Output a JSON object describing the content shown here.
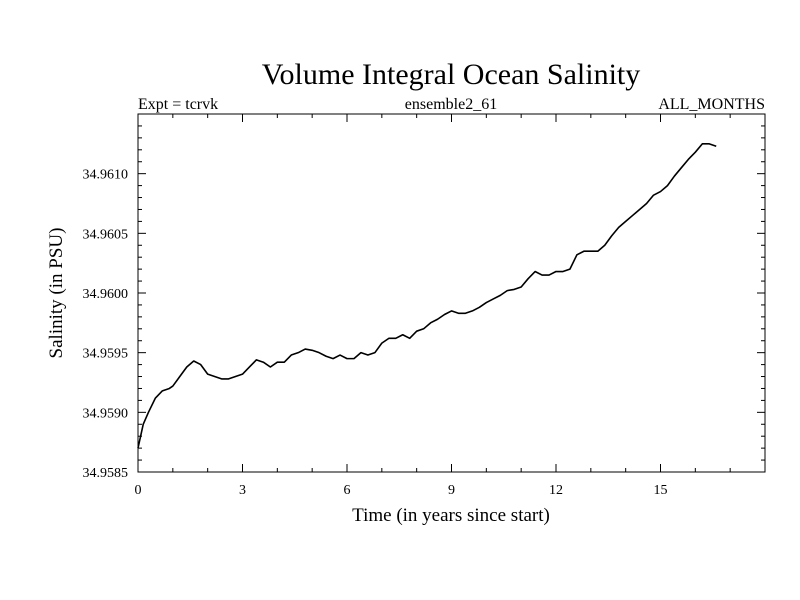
{
  "chart_data": {
    "type": "line",
    "title": "Volume Integral Ocean Salinity",
    "subtitle_left": "Expt = tcrvk",
    "subtitle_center": "ensemble2_61",
    "subtitle_right": "ALL_MONTHS",
    "xlabel": "Time (in years since start)",
    "ylabel": "Salinity (in PSU)",
    "xlim": [
      0,
      18
    ],
    "ylim": [
      34.9585,
      34.9615
    ],
    "xticks": [
      0,
      3,
      6,
      9,
      12,
      15
    ],
    "xtick_labels": [
      "0",
      "3",
      "6",
      "9",
      "12",
      "15"
    ],
    "yticks": [
      34.9585,
      34.959,
      34.9595,
      34.96,
      34.9605,
      34.961
    ],
    "ytick_labels": [
      "34.9585",
      "34.9590",
      "34.9595",
      "34.9600",
      "34.9605",
      "34.9610"
    ],
    "grid": false,
    "colors": {
      "line": "#000000",
      "axes": "#000000",
      "background": "#ffffff"
    },
    "series": [
      {
        "x": [
          0.0,
          0.15,
          0.3,
          0.5,
          0.7,
          0.9,
          1.0,
          1.2,
          1.4,
          1.6,
          1.8,
          2.0,
          2.2,
          2.4,
          2.6,
          2.8,
          3.0,
          3.2,
          3.4,
          3.6,
          3.8,
          4.0,
          4.2,
          4.4,
          4.6,
          4.8,
          5.0,
          5.2,
          5.4,
          5.6,
          5.8,
          6.0,
          6.2,
          6.4,
          6.6,
          6.8,
          7.0,
          7.2,
          7.4,
          7.6,
          7.8,
          8.0,
          8.2,
          8.4,
          8.6,
          8.8,
          9.0,
          9.2,
          9.4,
          9.6,
          9.8,
          10.0,
          10.2,
          10.4,
          10.6,
          10.8,
          11.0,
          11.2,
          11.4,
          11.6,
          11.8,
          12.0,
          12.2,
          12.4,
          12.6,
          12.8,
          13.0,
          13.2,
          13.4,
          13.6,
          13.8,
          14.0,
          14.2,
          14.4,
          14.6,
          14.8,
          15.0,
          15.2,
          15.4,
          15.6,
          15.8,
          16.0,
          16.2,
          16.4,
          16.6
        ],
        "y": [
          34.9587,
          34.9589,
          34.959,
          34.95912,
          34.95918,
          34.9592,
          34.95922,
          34.9593,
          34.95938,
          34.95943,
          34.9594,
          34.95932,
          34.9593,
          34.95928,
          34.95928,
          34.9593,
          34.95932,
          34.95938,
          34.95944,
          34.95942,
          34.95938,
          34.95942,
          34.95942,
          34.95948,
          34.9595,
          34.95953,
          34.95952,
          34.9595,
          34.95947,
          34.95945,
          34.95948,
          34.95945,
          34.95945,
          34.9595,
          34.95948,
          34.9595,
          34.95958,
          34.95962,
          34.95962,
          34.95965,
          34.95962,
          34.95968,
          34.9597,
          34.95975,
          34.95978,
          34.95982,
          34.95985,
          34.95983,
          34.95983,
          34.95985,
          34.95988,
          34.95992,
          34.95995,
          34.95998,
          34.96002,
          34.96003,
          34.96005,
          34.96012,
          34.96018,
          34.96015,
          34.96015,
          34.96018,
          34.96018,
          34.9602,
          34.96032,
          34.96035,
          34.96035,
          34.96035,
          34.9604,
          34.96048,
          34.96055,
          34.9606,
          34.96065,
          34.9607,
          34.96075,
          34.96082,
          34.96085,
          34.9609,
          34.96098,
          34.96105,
          34.96112,
          34.96118,
          34.96125,
          34.96125,
          34.96123
        ]
      }
    ]
  }
}
